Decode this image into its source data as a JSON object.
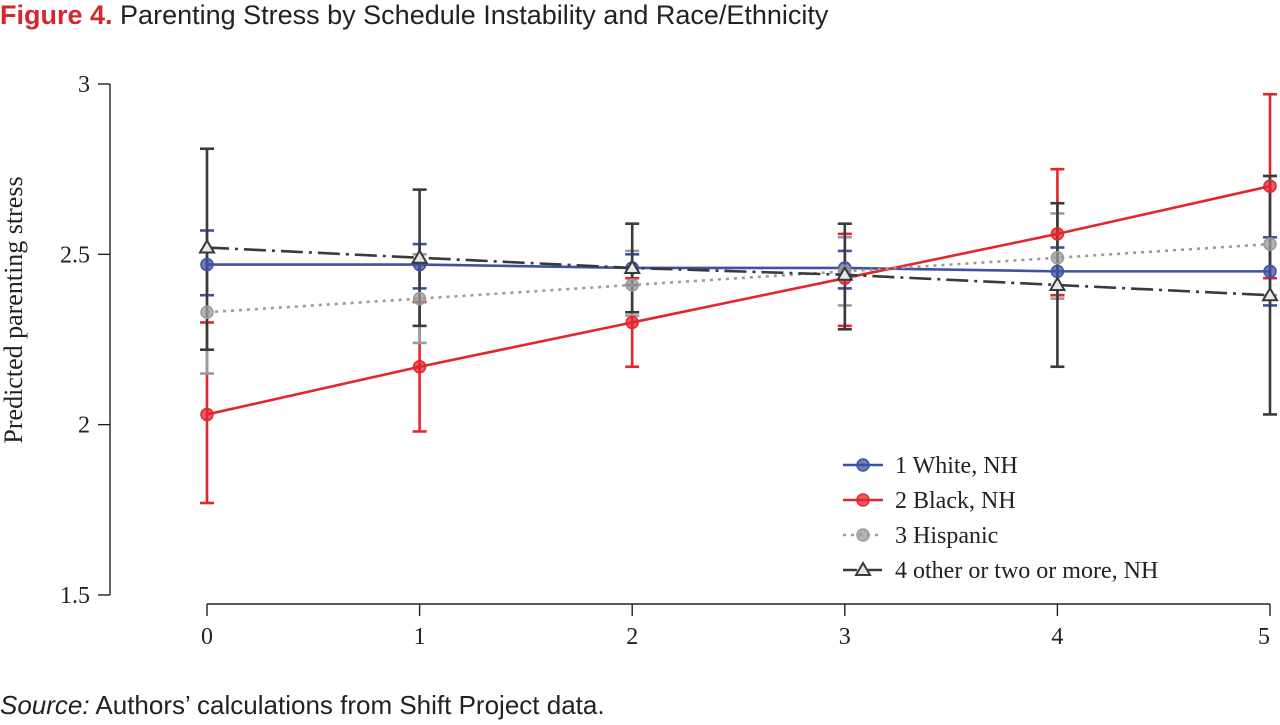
{
  "figure": {
    "label": "Figure 4.",
    "title": "Parenting Stress by Schedule Instability and Race/Ethnicity"
  },
  "source": {
    "label": "Source:",
    "text": "Authors’ calculations from Shift Project data."
  },
  "chart_data": {
    "type": "line",
    "title": "Parenting Stress by Schedule Instability and Race/Ethnicity",
    "xlabel": "",
    "ylabel": "Predicted parenting stress",
    "x": [
      0,
      1,
      2,
      3,
      4,
      5
    ],
    "xlim": [
      0,
      5
    ],
    "ylim": [
      1.5,
      3
    ],
    "x_ticks": [
      "0",
      "1",
      "2",
      "3",
      "4",
      "5"
    ],
    "y_ticks": [
      {
        "value": 1.5,
        "label": "1.5"
      },
      {
        "value": 2,
        "label": "2"
      },
      {
        "value": 2.5,
        "label": "2.5"
      },
      {
        "value": 3,
        "label": "3"
      }
    ],
    "grid": false,
    "legend_position": "bottom-right",
    "series": [
      {
        "name": "1 White, NH",
        "color": "#3d52a1",
        "marker": "circle",
        "line_style": "solid",
        "values": [
          2.47,
          2.47,
          2.46,
          2.46,
          2.45,
          2.45
        ],
        "ci_low": [
          2.38,
          2.4,
          2.41,
          2.4,
          2.38,
          2.35
        ],
        "ci_high": [
          2.57,
          2.53,
          2.5,
          2.51,
          2.52,
          2.55
        ]
      },
      {
        "name": "2 Black, NH",
        "color": "#e3262d",
        "marker": "circle",
        "line_style": "solid",
        "values": [
          2.03,
          2.17,
          2.3,
          2.43,
          2.56,
          2.7
        ],
        "ci_low": [
          1.77,
          1.98,
          2.17,
          2.29,
          2.38,
          2.43
        ],
        "ci_high": [
          2.3,
          2.36,
          2.43,
          2.56,
          2.75,
          2.97
        ]
      },
      {
        "name": "3 Hispanic",
        "color": "#9a9a9a",
        "marker": "circle",
        "line_style": "dotted",
        "values": [
          2.33,
          2.37,
          2.41,
          2.45,
          2.49,
          2.53
        ],
        "ci_low": [
          2.15,
          2.24,
          2.32,
          2.35,
          2.37,
          2.38
        ],
        "ci_high": [
          2.51,
          2.5,
          2.51,
          2.55,
          2.62,
          2.73
        ]
      },
      {
        "name": "4 other or two or more, NH",
        "color": "#3a3a3a",
        "marker": "triangle",
        "line_style": "dashdot",
        "values": [
          2.52,
          2.49,
          2.46,
          2.44,
          2.41,
          2.38
        ],
        "ci_low": [
          2.22,
          2.29,
          2.33,
          2.28,
          2.17,
          2.03
        ],
        "ci_high": [
          2.81,
          2.69,
          2.59,
          2.59,
          2.65,
          2.73
        ]
      }
    ]
  }
}
